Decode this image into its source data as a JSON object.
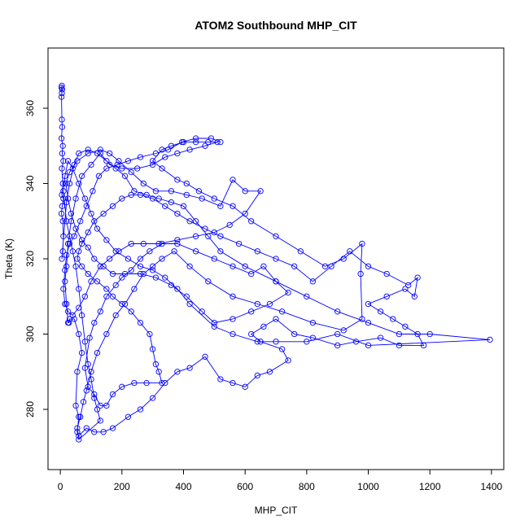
{
  "chart_data": {
    "type": "line",
    "title": "ATOM2 Southbound MHP_CIT",
    "xlabel": "MHP_CIT",
    "ylabel": "Theta (K)",
    "xlim": [
      -40,
      1440
    ],
    "ylim": [
      264,
      376
    ],
    "xticks": [
      0,
      200,
      400,
      600,
      800,
      1000,
      1200,
      1400
    ],
    "yticks": [
      280,
      300,
      320,
      340,
      360
    ],
    "grid": false,
    "series_color": "#0000ff",
    "marker": "open-circle",
    "series": [
      {
        "points": [
          [
            5,
            366
          ],
          [
            6,
            365
          ],
          [
            4,
            365.5
          ],
          [
            5,
            364
          ],
          [
            4,
            363
          ],
          [
            5,
            357
          ],
          [
            6,
            355
          ],
          [
            4,
            352
          ],
          [
            8,
            350
          ],
          [
            6,
            348
          ],
          [
            10,
            346
          ],
          [
            5,
            344
          ],
          [
            8,
            340
          ],
          [
            5,
            337
          ],
          [
            10,
            336
          ],
          [
            6,
            334
          ],
          [
            4,
            332
          ],
          [
            8,
            330
          ],
          [
            10,
            326
          ],
          [
            8,
            322
          ],
          [
            5,
            320
          ],
          [
            20,
            335
          ],
          [
            30,
            340
          ],
          [
            45,
            345
          ],
          [
            60,
            348
          ],
          [
            90,
            349
          ],
          [
            120,
            348
          ],
          [
            150,
            346
          ],
          [
            180,
            344
          ],
          [
            210,
            342
          ],
          [
            240,
            338
          ],
          [
            280,
            337
          ],
          [
            320,
            336
          ],
          [
            360,
            335
          ],
          [
            400,
            334
          ],
          [
            440,
            330
          ],
          [
            480,
            326
          ],
          [
            520,
            322
          ],
          [
            600,
            318
          ],
          [
            700,
            314
          ],
          [
            800,
            310
          ],
          [
            900,
            306
          ],
          [
            1000,
            303
          ],
          [
            1100,
            300
          ],
          [
            1200,
            300
          ],
          [
            1395,
            298.5
          ],
          [
            1000,
            297
          ],
          [
            900,
            300
          ],
          [
            800,
            298
          ],
          [
            700,
            298
          ],
          [
            640,
            298
          ],
          [
            560,
            300
          ],
          [
            500,
            302
          ],
          [
            420,
            308
          ],
          [
            380,
            312
          ],
          [
            340,
            315
          ],
          [
            300,
            317
          ],
          [
            260,
            318
          ],
          [
            220,
            320
          ],
          [
            180,
            322
          ],
          [
            150,
            325
          ],
          [
            120,
            328
          ],
          [
            100,
            332
          ],
          [
            80,
            336
          ],
          [
            60,
            340
          ],
          [
            40,
            344
          ],
          [
            25,
            346
          ],
          [
            15,
            342
          ],
          [
            10,
            338
          ],
          [
            20,
            330
          ],
          [
            30,
            326
          ],
          [
            40,
            322
          ],
          [
            50,
            318
          ],
          [
            60,
            312
          ],
          [
            70,
            305
          ],
          [
            80,
            298
          ],
          [
            90,
            292
          ],
          [
            100,
            288
          ],
          [
            110,
            283
          ],
          [
            120,
            280
          ],
          [
            130,
            277
          ],
          [
            60,
            272
          ],
          [
            55,
            275
          ],
          [
            65,
            278
          ],
          [
            75,
            282
          ],
          [
            85,
            285
          ],
          [
            100,
            290
          ],
          [
            120,
            295
          ],
          [
            150,
            300
          ],
          [
            180,
            305
          ],
          [
            210,
            308
          ],
          [
            240,
            312
          ],
          [
            270,
            316
          ],
          [
            300,
            318
          ],
          [
            330,
            320
          ],
          [
            370,
            322
          ],
          [
            420,
            318
          ],
          [
            480,
            314
          ],
          [
            560,
            310
          ],
          [
            640,
            308
          ],
          [
            720,
            306
          ],
          [
            820,
            303
          ],
          [
            920,
            301
          ],
          [
            980,
            304
          ],
          [
            975,
            316
          ],
          [
            980,
            324
          ],
          [
            920,
            320
          ],
          [
            860,
            318
          ],
          [
            780,
            322
          ],
          [
            700,
            326
          ],
          [
            620,
            330
          ],
          [
            560,
            334
          ],
          [
            500,
            336
          ],
          [
            450,
            338
          ],
          [
            410,
            340
          ],
          [
            380,
            341
          ],
          [
            330,
            344
          ],
          [
            300,
            346
          ],
          [
            330,
            349
          ],
          [
            360,
            350
          ],
          [
            400,
            351
          ],
          [
            440,
            351
          ],
          [
            480,
            351
          ],
          [
            510,
            351
          ],
          [
            470,
            350
          ],
          [
            420,
            349
          ],
          [
            380,
            348
          ],
          [
            340,
            347
          ],
          [
            300,
            345
          ],
          [
            250,
            344
          ],
          [
            200,
            344
          ],
          [
            160,
            345
          ],
          [
            130,
            348
          ],
          [
            100,
            345
          ],
          [
            70,
            342
          ],
          [
            50,
            336
          ],
          [
            35,
            330
          ],
          [
            25,
            324
          ],
          [
            20,
            318
          ],
          [
            15,
            314
          ],
          [
            20,
            308
          ],
          [
            25,
            303
          ],
          [
            28,
            303
          ],
          [
            30,
            304
          ],
          [
            45,
            304
          ],
          [
            60,
            300
          ],
          [
            70,
            295
          ],
          [
            55,
            290
          ],
          [
            50,
            281
          ],
          [
            60,
            278
          ],
          [
            55,
            274
          ],
          [
            60,
            273
          ],
          [
            85,
            275
          ],
          [
            110,
            274
          ],
          [
            140,
            274
          ],
          [
            170,
            275
          ],
          [
            220,
            278
          ],
          [
            260,
            280
          ],
          [
            300,
            283
          ],
          [
            340,
            287
          ],
          [
            380,
            290
          ],
          [
            420,
            291
          ],
          [
            470,
            294
          ],
          [
            520,
            288
          ],
          [
            560,
            287
          ],
          [
            600,
            286
          ],
          [
            640,
            289
          ],
          [
            680,
            290
          ],
          [
            740,
            293
          ],
          [
            720,
            296
          ],
          [
            650,
            298
          ],
          [
            620,
            300
          ],
          [
            660,
            302
          ],
          [
            700,
            304
          ],
          [
            760,
            300
          ],
          [
            820,
            299
          ],
          [
            900,
            297
          ],
          [
            960,
            298
          ],
          [
            1040,
            299
          ],
          [
            1100,
            297
          ],
          [
            1180,
            297
          ],
          [
            1160,
            300
          ],
          [
            1120,
            302
          ],
          [
            1080,
            304
          ],
          [
            1040,
            306
          ],
          [
            1000,
            308
          ],
          [
            1060,
            310
          ],
          [
            1120,
            312
          ],
          [
            1150,
            310
          ],
          [
            1160,
            315
          ],
          [
            1130,
            313
          ],
          [
            1060,
            316
          ],
          [
            1000,
            318
          ],
          [
            940,
            322
          ],
          [
            880,
            318
          ],
          [
            820,
            314
          ],
          [
            760,
            318
          ],
          [
            700,
            320
          ],
          [
            640,
            322
          ],
          [
            580,
            324
          ],
          [
            520,
            326
          ],
          [
            470,
            328
          ],
          [
            420,
            330
          ],
          [
            380,
            332
          ],
          [
            340,
            334
          ],
          [
            300,
            336
          ],
          [
            260,
            337
          ],
          [
            230,
            337
          ],
          [
            200,
            336
          ],
          [
            170,
            334
          ],
          [
            140,
            332
          ],
          [
            110,
            330
          ],
          [
            90,
            327
          ],
          [
            70,
            324
          ],
          [
            60,
            322
          ],
          [
            55,
            320
          ],
          [
            70,
            318
          ],
          [
            90,
            316
          ],
          [
            120,
            314
          ],
          [
            150,
            312
          ],
          [
            170,
            310
          ],
          [
            200,
            308
          ],
          [
            230,
            306
          ],
          [
            260,
            303
          ],
          [
            290,
            300
          ],
          [
            300,
            296
          ],
          [
            310,
            292
          ],
          [
            320,
            290
          ],
          [
            330,
            287
          ],
          [
            280,
            287
          ],
          [
            240,
            287
          ],
          [
            200,
            286
          ],
          [
            170,
            284
          ],
          [
            150,
            281
          ],
          [
            130,
            281
          ],
          [
            110,
            284
          ],
          [
            90,
            286
          ],
          [
            80,
            291
          ],
          [
            95,
            299
          ],
          [
            110,
            303
          ],
          [
            130,
            306
          ],
          [
            150,
            310
          ],
          [
            180,
            313
          ],
          [
            200,
            315
          ],
          [
            230,
            317
          ],
          [
            260,
            320
          ],
          [
            290,
            322
          ],
          [
            330,
            324
          ],
          [
            380,
            324
          ],
          [
            440,
            322
          ],
          [
            500,
            320
          ],
          [
            560,
            318
          ],
          [
            620,
            316
          ],
          [
            660,
            318
          ],
          [
            700,
            314
          ],
          [
            740,
            311
          ],
          [
            680,
            308
          ],
          [
            620,
            306
          ],
          [
            560,
            304
          ],
          [
            500,
            303
          ],
          [
            460,
            306
          ],
          [
            410,
            310
          ],
          [
            360,
            313
          ],
          [
            310,
            315
          ],
          [
            260,
            316
          ],
          [
            210,
            316
          ],
          [
            170,
            316
          ],
          [
            140,
            318
          ],
          [
            110,
            320
          ],
          [
            90,
            323
          ],
          [
            70,
            325
          ],
          [
            50,
            328
          ],
          [
            35,
            332
          ],
          [
            25,
            336
          ],
          [
            18,
            340
          ],
          [
            30,
            343
          ],
          [
            55,
            346
          ],
          [
            90,
            348
          ],
          [
            130,
            349
          ],
          [
            160,
            348
          ],
          [
            190,
            346
          ],
          [
            230,
            343
          ],
          [
            270,
            340
          ],
          [
            310,
            338
          ],
          [
            360,
            338
          ],
          [
            410,
            337
          ],
          [
            460,
            336
          ],
          [
            520,
            334
          ],
          [
            560,
            341
          ],
          [
            600,
            338
          ],
          [
            650,
            338
          ],
          [
            600,
            332
          ],
          [
            550,
            329
          ],
          [
            500,
            327
          ],
          [
            440,
            326
          ],
          [
            380,
            325
          ],
          [
            320,
            324
          ],
          [
            270,
            324
          ],
          [
            230,
            324
          ],
          [
            190,
            322
          ],
          [
            160,
            320
          ],
          [
            130,
            318
          ],
          [
            100,
            314
          ],
          [
            80,
            310
          ],
          [
            60,
            307
          ],
          [
            40,
            305
          ],
          [
            25,
            306
          ],
          [
            15,
            308
          ],
          [
            10,
            312
          ],
          [
            15,
            317
          ],
          [
            20,
            321
          ],
          [
            30,
            324
          ],
          [
            45,
            326
          ],
          [
            65,
            330
          ],
          [
            85,
            334
          ],
          [
            105,
            338
          ],
          [
            125,
            342
          ],
          [
            150,
            344
          ],
          [
            185,
            345
          ],
          [
            220,
            346
          ],
          [
            260,
            347
          ],
          [
            310,
            348
          ],
          [
            350,
            349
          ],
          [
            395,
            351
          ],
          [
            440,
            352
          ],
          [
            490,
            352
          ],
          [
            520,
            351
          ]
        ]
      }
    ]
  }
}
